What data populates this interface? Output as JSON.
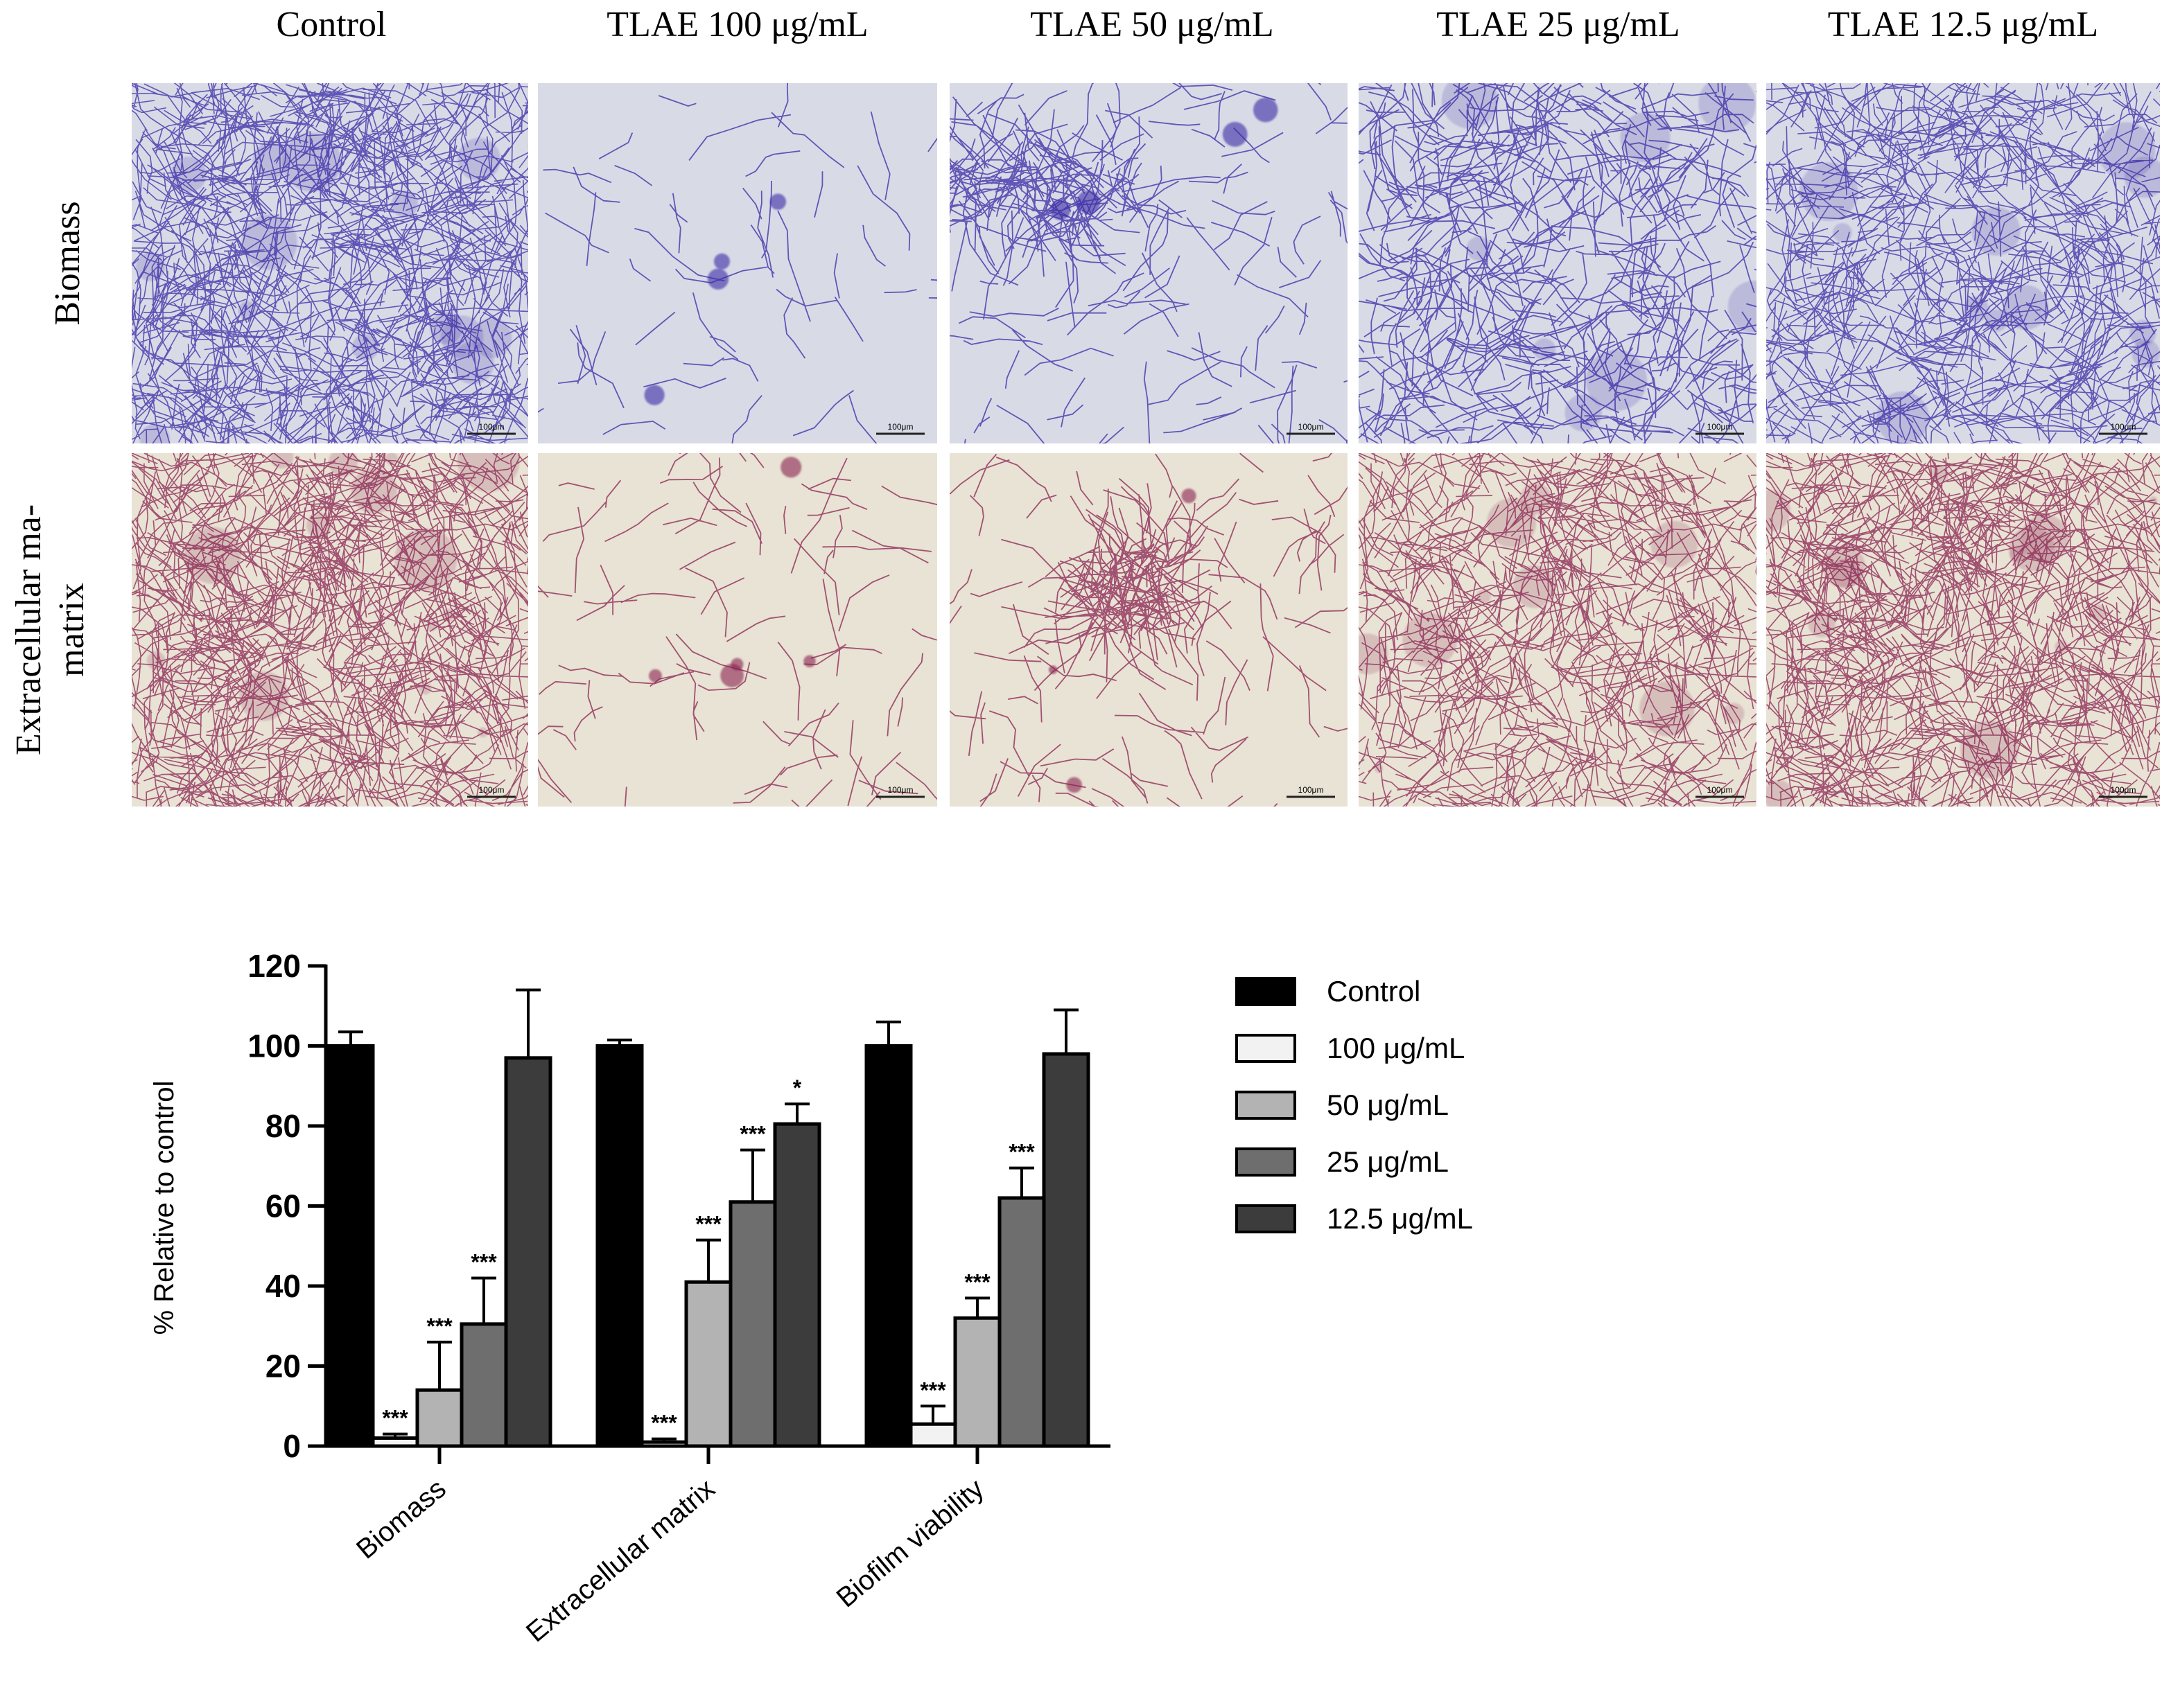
{
  "micrographs": {
    "columns": [
      "Control",
      "TLAE 100 μg/mL",
      "TLAE 50 μg/mL",
      "TLAE 25 μg/mL",
      "TLAE 12.5 μg/mL"
    ],
    "rows": [
      {
        "label_lines": [
          "Biomass"
        ],
        "stain": "crystal-violet",
        "color": "#3a2aa6",
        "background": "#d8dbe6"
      },
      {
        "label_lines": [
          "Extracellular ma-",
          "matrix"
        ],
        "stain": "congo-red",
        "color": "#8a2050",
        "background": "#e8e3d4"
      }
    ],
    "scale_bar_label": "100μm",
    "density": [
      [
        1.0,
        0.02,
        0.25,
        0.55,
        0.75
      ],
      [
        1.0,
        0.05,
        0.2,
        0.7,
        0.95
      ]
    ]
  },
  "chart_data": {
    "type": "bar",
    "categories": [
      "Biomass",
      "Extracellular matrix",
      "Biofilm viability"
    ],
    "ylabel": "% Relative to control",
    "xlabel": "",
    "ylim": [
      0,
      120
    ],
    "yticks": [
      0,
      20,
      40,
      60,
      80,
      100,
      120
    ],
    "grid": false,
    "legend_position": "right",
    "series": [
      {
        "name": "Control",
        "color": "#000000",
        "values": [
          100,
          100,
          100
        ],
        "errors": [
          3.5,
          1.5,
          6
        ],
        "sig": [
          "",
          "",
          ""
        ]
      },
      {
        "name": "100 μg/mL",
        "color": "#f2f2f2",
        "values": [
          2,
          1,
          5.5
        ],
        "errors": [
          1,
          0.8,
          4.5
        ],
        "sig": [
          "***",
          "***",
          "***"
        ]
      },
      {
        "name": "50 μg/mL",
        "color": "#b3b3b3",
        "values": [
          14,
          41,
          32
        ],
        "errors": [
          12,
          10.5,
          5
        ],
        "sig": [
          "***",
          "***",
          "***"
        ]
      },
      {
        "name": "25 μg/mL",
        "color": "#6e6e6e",
        "values": [
          30.5,
          61,
          62
        ],
        "errors": [
          11.5,
          13,
          7.5
        ],
        "sig": [
          "***",
          "***",
          "***"
        ]
      },
      {
        "name": "12.5 μg/mL",
        "color": "#3c3c3c",
        "values": [
          97,
          80.5,
          98
        ],
        "errors": [
          17,
          5,
          11
        ],
        "sig": [
          "",
          "*",
          ""
        ]
      }
    ]
  }
}
